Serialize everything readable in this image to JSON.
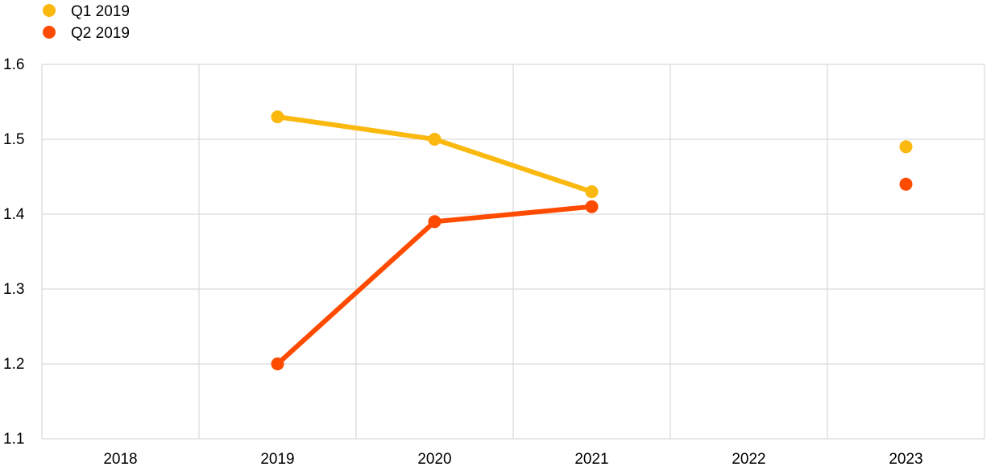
{
  "chart_data": {
    "type": "line",
    "x": [
      "2018",
      "2019",
      "2020",
      "2021",
      "2022",
      "2023"
    ],
    "ylim": [
      1.1,
      1.6
    ],
    "y_ticks": [
      "1.1",
      "1.2",
      "1.3",
      "1.4",
      "1.5",
      "1.6"
    ],
    "grid": true,
    "legend_position": "top-left",
    "series": [
      {
        "name": "Q1 2019",
        "color": "#FBB80F",
        "values": [
          null,
          1.53,
          1.5,
          1.43,
          null,
          1.49
        ]
      },
      {
        "name": "Q2 2019",
        "color": "#FF4B00",
        "values": [
          null,
          1.2,
          1.39,
          1.41,
          null,
          1.44
        ]
      }
    ]
  }
}
